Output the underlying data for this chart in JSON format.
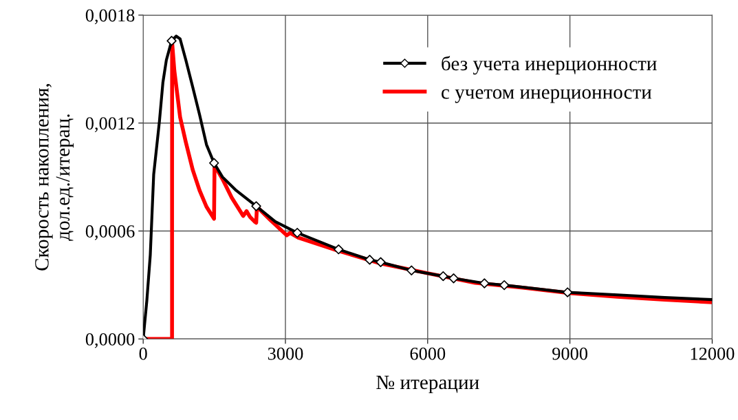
{
  "chart_data": {
    "type": "line",
    "xlabel": "№ итерации",
    "ylabel": "Скорость накопления,\nдол.ед./итерац.",
    "xlim": [
      0,
      12000
    ],
    "xticks": [
      0,
      3000,
      6000,
      9000,
      12000
    ],
    "ylim": [
      0,
      0.0018
    ],
    "yticks": [
      {
        "value": 0,
        "label": "0,0000"
      },
      {
        "value": 0.0006,
        "label": "0,0006"
      },
      {
        "value": 0.0012,
        "label": "0,0012"
      },
      {
        "value": 0.0018,
        "label": "0,0018"
      }
    ],
    "grid": true,
    "legend": "top right",
    "line_style": "solid",
    "series": [
      {
        "name": "без учета инерционности",
        "color": "#000000",
        "marker": "none",
        "x": [
          0,
          77,
          150,
          222,
          343,
          416,
          489,
          600,
          697,
          779,
          900,
          1045,
          1190,
          1335,
          1495,
          1673,
          1963,
          2384,
          2786,
          3250,
          4121,
          4777,
          5009,
          5659,
          6327,
          6547,
          7197,
          7615,
          8950,
          10000,
          11000,
          12000
        ],
        "values": [
          0,
          0.000212,
          0.000467,
          0.000915,
          0.00121,
          0.001425,
          0.00155,
          0.001657,
          0.001683,
          0.001668,
          0.00155,
          0.0014,
          0.001246,
          0.00108,
          0.000978,
          0.0009,
          0.000825,
          0.000738,
          0.000652,
          0.00059,
          0.000498,
          0.00044,
          0.000427,
          0.000381,
          0.000349,
          0.000337,
          0.000309,
          0.000299,
          0.000259,
          0.000245,
          0.00023,
          0.000219
        ]
      },
      {
        "type": "scatter",
        "color": "#000000",
        "marker": "diamond",
        "x": [
          0,
          600,
          1495,
          2384,
          3250,
          4121,
          4777,
          5009,
          5659,
          6327,
          6547,
          7197,
          7615,
          8950
        ],
        "values": [
          0,
          0.001657,
          0.000978,
          0.000738,
          0.00059,
          0.000498,
          0.00044,
          0.000427,
          0.000381,
          0.000349,
          0.000337,
          0.000309,
          0.000299,
          0.000259
        ]
      },
      {
        "name": "с учетом инерционности",
        "color": "#ff0000",
        "marker": "none",
        "x": [
          0,
          609,
          610,
          658,
          779,
          900,
          1045,
          1190,
          1335,
          1495,
          1505,
          1673,
          1867,
          2109,
          2181,
          2254,
          2351,
          2384,
          2399,
          2689,
          3028,
          3101,
          3270,
          4121,
          5000,
          6000,
          7000,
          8000,
          9000,
          10000,
          11000,
          12000
        ],
        "values": [
          0,
          0,
          0.00165,
          0.00149,
          0.001233,
          0.001093,
          0.00094,
          0.000825,
          0.000735,
          0.000668,
          0.000965,
          0.000889,
          0.000786,
          0.000684,
          0.00071,
          0.000678,
          0.000652,
          0.000646,
          0.000735,
          0.000659,
          0.000576,
          0.000589,
          0.000563,
          0.00049,
          0.00042,
          0.000365,
          0.000312,
          0.000285,
          0.000255,
          0.000235,
          0.000218,
          0.000204
        ]
      }
    ]
  }
}
